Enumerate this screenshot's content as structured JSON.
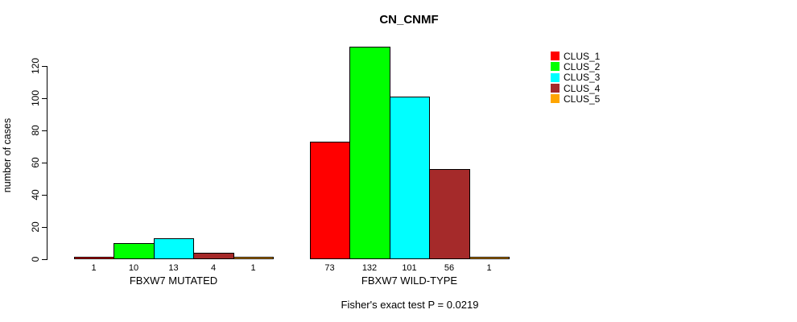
{
  "title": "CN_CNMF",
  "caption": "Fisher's exact test P = 0.0219",
  "y_axis_label": "number of cases",
  "chart_data": {
    "type": "bar",
    "title": "CN_CNMF",
    "xlabel": "",
    "ylabel": "number of cases",
    "categories": [
      "FBXW7 MUTATED",
      "FBXW7 WILD-TYPE"
    ],
    "series": [
      {
        "name": "CLUS_1",
        "color": "#FF0000",
        "values": [
          1,
          73
        ]
      },
      {
        "name": "CLUS_2",
        "color": "#00FF00",
        "values": [
          10,
          132
        ]
      },
      {
        "name": "CLUS_3",
        "color": "#00FFFF",
        "values": [
          13,
          101
        ]
      },
      {
        "name": "CLUS_4",
        "color": "#A52A2A",
        "values": [
          4,
          56
        ]
      },
      {
        "name": "CLUS_5",
        "color": "#FFA500",
        "values": [
          1,
          1
        ]
      }
    ],
    "yticks": [
      0,
      20,
      40,
      60,
      80,
      100,
      120
    ],
    "ylim": [
      0,
      135
    ],
    "grid": false,
    "legend_position": "right",
    "bar_value_labels": true,
    "annotation": "Fisher's exact test P = 0.0219"
  }
}
